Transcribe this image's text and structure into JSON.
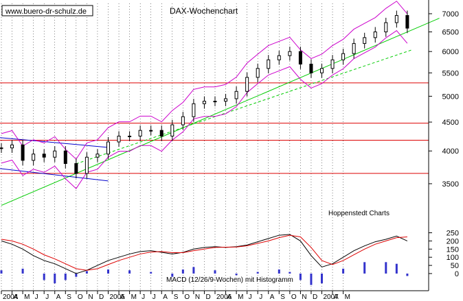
{
  "watermark": "www.buero-dr-schulz.de",
  "title": "DAX-Wochenchart",
  "source": "Hoppenstedt Charts",
  "colors": {
    "background": "#ffffff",
    "grid": "#000000",
    "price_candles": "#000000",
    "bands": "#cc00cc",
    "trendlines": "#00cc00",
    "horizontal_levels": "#dd0000",
    "channel": "#0000cc",
    "macd_histogram": "#3333cc",
    "macd_line": "#000000",
    "signal_line": "#dd0000"
  },
  "chart_data": [
    {
      "type": "candlestick",
      "title": "DAX-Wochenchart",
      "x_ticks": [
        "2004",
        "A",
        "M",
        "J",
        "J",
        "A",
        "S",
        "O",
        "N",
        "D",
        "2005",
        "A",
        "M",
        "J",
        "J",
        "A",
        "S",
        "O",
        "N",
        "D",
        "2006",
        "A",
        "M",
        "J",
        "J",
        "A",
        "S",
        "O",
        "N",
        "D",
        "2007",
        "A",
        "M"
      ],
      "x_range": [
        "2004-01",
        "2007-05"
      ],
      "y_ticks": [
        3500,
        4000,
        4500,
        5000,
        5500,
        6000,
        6500,
        7000
      ],
      "ylim": [
        3200,
        7300
      ],
      "y_scale": "log",
      "grid": "vertical-dashed",
      "series": [
        {
          "x": [
            "2004-01",
            "2004-02",
            "2004-03",
            "2004-04",
            "2004-05",
            "2004-06",
            "2004-07",
            "2004-08",
            "2004-09",
            "2004-10",
            "2004-11",
            "2004-12",
            "2005-01",
            "2005-02",
            "2005-03",
            "2005-04",
            "2005-05",
            "2005-06",
            "2005-07",
            "2005-08",
            "2005-09",
            "2005-10",
            "2005-11",
            "2005-12",
            "2006-01",
            "2006-02",
            "2006-03",
            "2006-04",
            "2006-05",
            "2006-06",
            "2006-07",
            "2006-08",
            "2006-09",
            "2006-10",
            "2006-11",
            "2006-12",
            "2007-01",
            "2007-02",
            "2007-03"
          ],
          "values": [
            4050,
            4100,
            3850,
            3950,
            3900,
            4000,
            3800,
            3650,
            3900,
            3950,
            4150,
            4250,
            4250,
            4350,
            4350,
            4250,
            4450,
            4600,
            4850,
            4900,
            4900,
            4950,
            5100,
            5400,
            5600,
            5800,
            5900,
            6000,
            5700,
            5500,
            5600,
            5800,
            5950,
            6200,
            6350,
            6500,
            6750,
            6950,
            6600
          ]
        }
      ],
      "horizontal_lines": [
        3650,
        4180,
        4480,
        5280
      ]
    },
    {
      "type": "bar",
      "title": "MACD (12/26/9-Wochen) mit Histogramm",
      "y_ticks": [
        0,
        50,
        100,
        150,
        200,
        250
      ],
      "ylim": [
        -80,
        290
      ],
      "series": [
        {
          "x": [
            "2004-01",
            "2004-02",
            "2004-03",
            "2004-04",
            "2004-05",
            "2004-06",
            "2004-07",
            "2004-08",
            "2004-09",
            "2004-10",
            "2004-11",
            "2004-12",
            "2005-01",
            "2005-02",
            "2005-03",
            "2005-04",
            "2005-05",
            "2005-06",
            "2005-07",
            "2005-08",
            "2005-09",
            "2005-10",
            "2005-11",
            "2005-12",
            "2006-01",
            "2006-02",
            "2006-03",
            "2006-04",
            "2006-05",
            "2006-06",
            "2006-07",
            "2006-08",
            "2006-09",
            "2006-10",
            "2006-11",
            "2006-12",
            "2007-01",
            "2007-02",
            "2007-03"
          ],
          "values": [
            200,
            180,
            150,
            110,
            80,
            60,
            30,
            0,
            20,
            50,
            80,
            100,
            120,
            135,
            140,
            130,
            120,
            130,
            150,
            160,
            165,
            160,
            165,
            175,
            195,
            215,
            235,
            240,
            200,
            110,
            40,
            60,
            100,
            140,
            170,
            195,
            210,
            230,
            200
          ]
        },
        {
          "x": [
            "2004-01",
            "2004-02",
            "2004-03",
            "2004-04",
            "2004-05",
            "2004-06",
            "2004-07",
            "2004-08",
            "2004-09",
            "2004-10",
            "2004-11",
            "2004-12",
            "2005-01",
            "2005-02",
            "2005-03",
            "2005-04",
            "2005-05",
            "2005-06",
            "2005-07",
            "2005-08",
            "2005-09",
            "2005-10",
            "2005-11",
            "2005-12",
            "2006-01",
            "2006-02",
            "2006-03",
            "2006-04",
            "2006-05",
            "2006-06",
            "2006-07",
            "2006-08",
            "2006-09",
            "2006-10",
            "2006-11",
            "2006-12",
            "2007-01",
            "2007-02",
            "2007-03"
          ],
          "values": [
            210,
            200,
            180,
            150,
            115,
            90,
            60,
            30,
            20,
            30,
            55,
            80,
            100,
            120,
            132,
            135,
            128,
            128,
            140,
            150,
            160,
            162,
            163,
            170,
            185,
            200,
            220,
            235,
            225,
            160,
            80,
            55,
            80,
            115,
            150,
            180,
            200,
            220,
            225
          ]
        },
        {
          "x": [
            "2004-01",
            "2004-03",
            "2004-05",
            "2004-06",
            "2004-07",
            "2004-08",
            "2004-09",
            "2004-11",
            "2005-01",
            "2005-03",
            "2005-05",
            "2005-06",
            "2005-07",
            "2005-09",
            "2005-11",
            "2006-01",
            "2006-03",
            "2006-04",
            "2006-05",
            "2006-06",
            "2006-07",
            "2006-09",
            "2006-11",
            "2007-01",
            "2007-02",
            "2007-03"
          ],
          "values": [
            20,
            30,
            -40,
            -60,
            -40,
            -20,
            15,
            25,
            20,
            10,
            -20,
            25,
            40,
            20,
            -10,
            10,
            25,
            10,
            -40,
            -70,
            -60,
            30,
            70,
            70,
            60,
            -15
          ]
        }
      ]
    }
  ]
}
